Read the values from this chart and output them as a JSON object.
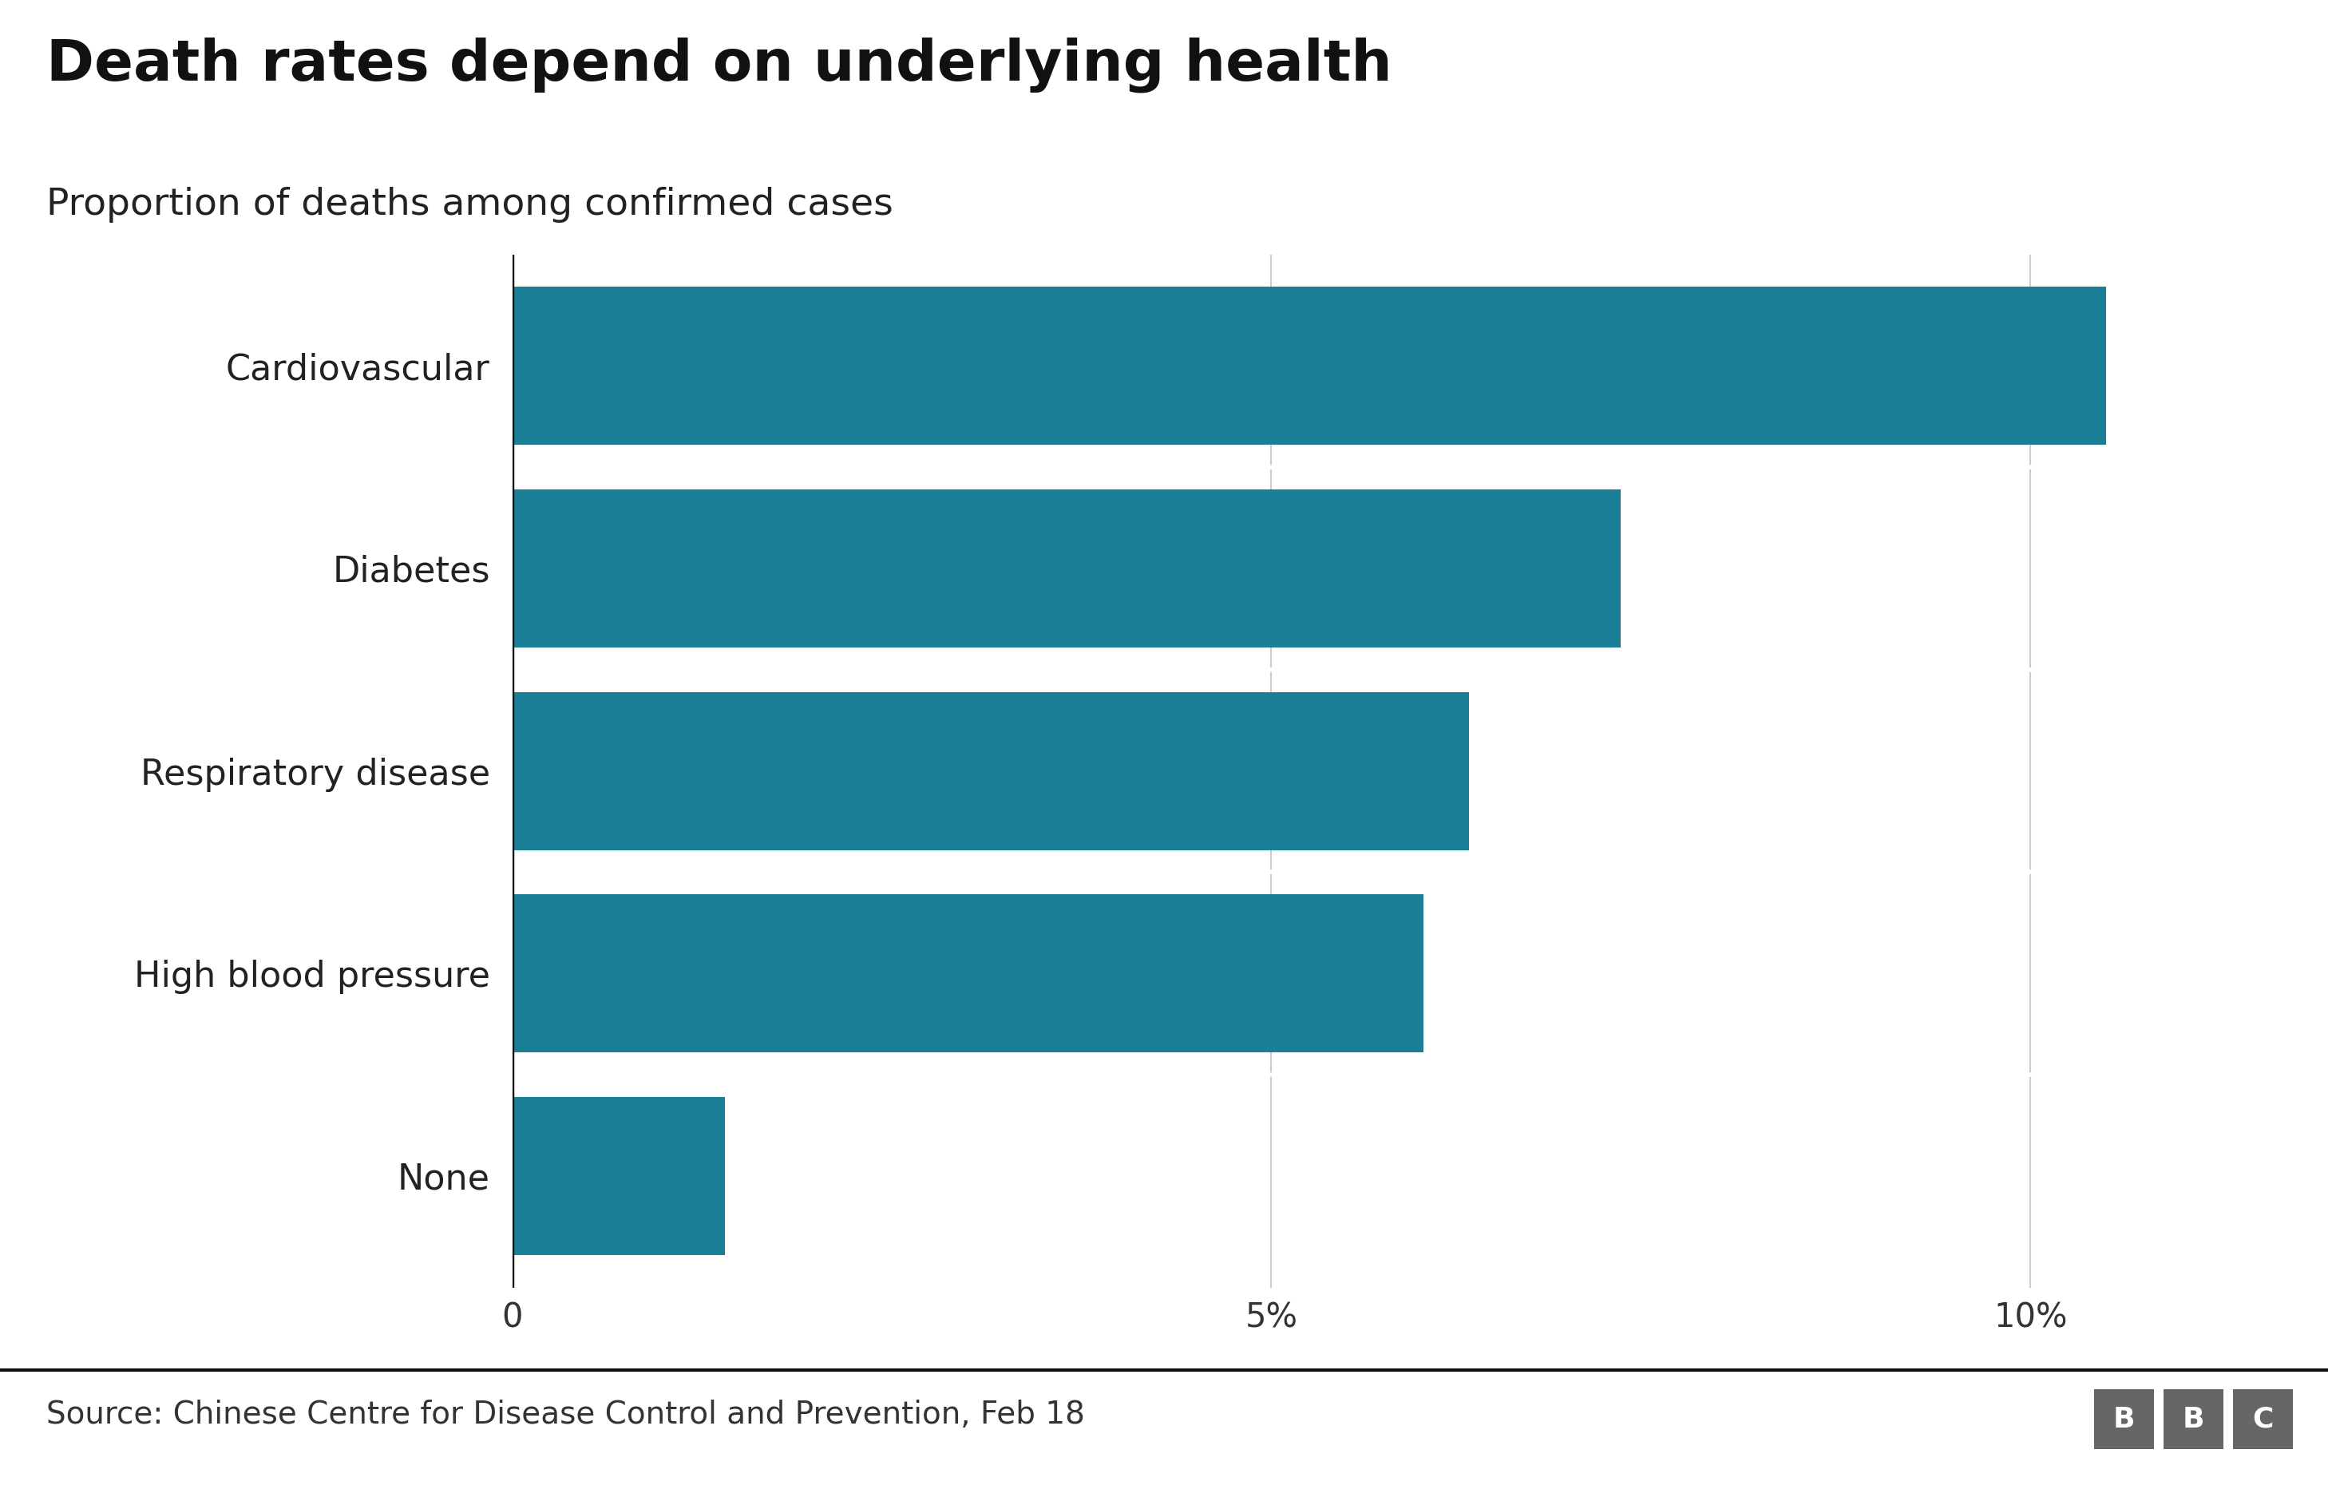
{
  "title": "Death rates depend on underlying health",
  "subtitle": "Proportion of deaths among confirmed cases",
  "categories": [
    "Cardiovascular",
    "Diabetes",
    "Respiratory disease",
    "High blood pressure",
    "None"
  ],
  "values": [
    10.5,
    7.3,
    6.3,
    6.0,
    1.4
  ],
  "bar_color": "#1a7f96",
  "background_color": "#ffffff",
  "source_text": "Source: Chinese Centre for Disease Control and Prevention, Feb 18",
  "xlim": [
    0,
    11.5
  ],
  "xtick_positions": [
    0,
    5,
    10
  ],
  "xtick_labels": [
    "0",
    "5%",
    "10%"
  ],
  "title_fontsize": 52,
  "subtitle_fontsize": 34,
  "tick_fontsize": 30,
  "label_fontsize": 32,
  "source_fontsize": 28,
  "bar_height": 0.78,
  "footer_line_color": "#111111",
  "grid_color": "#cccccc",
  "axis_line_color": "#111111",
  "bbc_color": "#666666"
}
